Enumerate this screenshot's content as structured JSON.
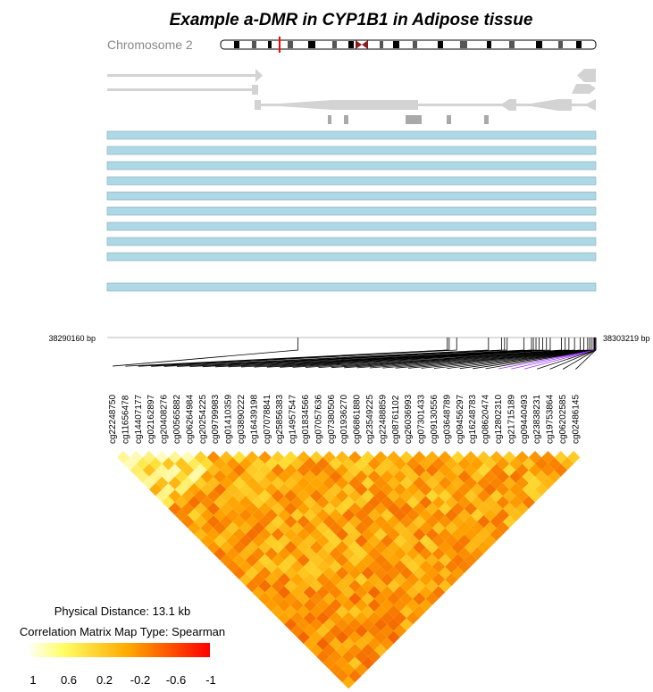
{
  "title": "Example a-DMR in CYP1B1 in Adipose tissue",
  "chromosome_label": "Chromosome 2",
  "region": {
    "start_label": "38290160 bp",
    "end_label": "38303219 bp"
  },
  "probes": [
    "cg22248750",
    "cg11656478",
    "cg14407177",
    "cg02162897",
    "cg20408276",
    "cg00565882",
    "cg06264984",
    "cg20254225",
    "cg09799983",
    "cg01410359",
    "cg03890222",
    "cg16439198",
    "cg07078841",
    "cg25856383",
    "cg14957547",
    "cg01834566",
    "cg07057636",
    "cg07380506",
    "cg01936270",
    "cg06861880",
    "cg23549225",
    "cg22488859",
    "cg08761102",
    "cg26036993",
    "cg07301433",
    "cg09130556",
    "cg03648789",
    "cg09456297",
    "cg16248783",
    "cg08620474",
    "cg12802310",
    "cg21715189",
    "cg09440493",
    "cg23838231",
    "cg19753864",
    "cg06202585",
    "cg02486145"
  ],
  "legend": {
    "distance_label": "Physical Distance: 13.1 kb",
    "type_label": "Correlation Matrix Map Type: Spearman",
    "ticks": [
      "1",
      "0.6",
      "0.2",
      "-0.2",
      "-0.6",
      "-1"
    ]
  },
  "colors": {
    "low": "#ffff99",
    "mid": "#ff9900",
    "high": "#ff0000",
    "track": "#add8e6",
    "gene": "#d3d3d3",
    "ideogram_marker": "#ff0000",
    "highlight": "#9933ff"
  },
  "chart_data": {
    "type": "heatmap",
    "title": "Example a-DMR in CYP1B1 in Adipose tissue",
    "chromosome": "2",
    "region_bp": [
      38290160,
      38303219
    ],
    "physical_distance_kb": 13.1,
    "correlation_type": "Spearman",
    "scale_range": [
      -1,
      1
    ],
    "probe_count": 37,
    "probe_positions_bp": [
      38295260,
      38299250,
      38299300,
      38299500,
      38300350,
      38300700,
      38300780,
      38300850,
      38301300,
      38301500,
      38301550,
      38301620,
      38301700,
      38301800,
      38301900,
      38302000,
      38302300,
      38302400,
      38302500,
      38302650,
      38302800,
      38302900,
      38303000,
      38303050,
      38303100,
      38303150,
      38303180,
      38303190,
      38303200,
      38303205,
      38303208,
      38303210,
      38303212,
      38303214,
      38303216,
      38303217,
      38303219
    ]
  }
}
